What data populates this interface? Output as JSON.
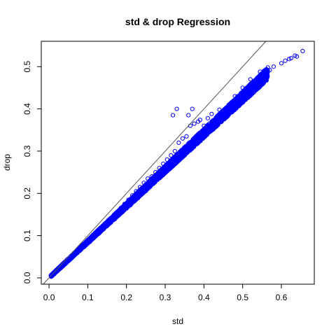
{
  "chart_data": {
    "type": "scatter",
    "title": "std & drop Regression",
    "xlabel": "std",
    "ylabel": "drop",
    "xlim": [
      -0.02,
      0.685
    ],
    "ylim": [
      -0.015,
      0.56
    ],
    "xticks": [
      0.0,
      0.1,
      0.2,
      0.3,
      0.4,
      0.5,
      0.6
    ],
    "xtick_labels": [
      "0.0",
      "0.1",
      "0.2",
      "0.3",
      "0.4",
      "0.5",
      "0.6"
    ],
    "yticks": [
      0.0,
      0.1,
      0.2,
      0.3,
      0.4,
      0.5
    ],
    "ytick_labels": [
      "0.0",
      "0.1",
      "0.2",
      "0.3",
      "0.4",
      "0.5"
    ],
    "reference_line": {
      "slope": 1,
      "intercept": 0
    },
    "marker": "open-circle",
    "grid": false,
    "legend": "none",
    "color": "#0000ff",
    "points": [
      [
        0.005,
        0.005
      ],
      [
        0.01,
        0.009
      ],
      [
        0.02,
        0.018
      ],
      [
        0.03,
        0.026
      ],
      [
        0.04,
        0.034
      ],
      [
        0.05,
        0.043
      ],
      [
        0.06,
        0.051
      ],
      [
        0.07,
        0.058
      ],
      [
        0.08,
        0.066
      ],
      [
        0.09,
        0.074
      ],
      [
        0.1,
        0.082
      ],
      [
        0.11,
        0.09
      ],
      [
        0.12,
        0.098
      ],
      [
        0.13,
        0.106
      ],
      [
        0.14,
        0.115
      ],
      [
        0.15,
        0.123
      ],
      [
        0.16,
        0.131
      ],
      [
        0.17,
        0.139
      ],
      [
        0.18,
        0.148
      ],
      [
        0.19,
        0.156
      ],
      [
        0.2,
        0.164
      ],
      [
        0.21,
        0.172
      ],
      [
        0.22,
        0.181
      ],
      [
        0.23,
        0.189
      ],
      [
        0.24,
        0.198
      ],
      [
        0.25,
        0.206
      ],
      [
        0.26,
        0.215
      ],
      [
        0.27,
        0.223
      ],
      [
        0.28,
        0.232
      ],
      [
        0.29,
        0.24
      ],
      [
        0.3,
        0.249
      ],
      [
        0.31,
        0.258
      ],
      [
        0.32,
        0.266
      ],
      [
        0.33,
        0.275
      ],
      [
        0.34,
        0.284
      ],
      [
        0.35,
        0.293
      ],
      [
        0.36,
        0.302
      ],
      [
        0.37,
        0.311
      ],
      [
        0.38,
        0.32
      ],
      [
        0.39,
        0.329
      ],
      [
        0.4,
        0.338
      ],
      [
        0.41,
        0.347
      ],
      [
        0.42,
        0.356
      ],
      [
        0.43,
        0.365
      ],
      [
        0.44,
        0.374
      ],
      [
        0.45,
        0.383
      ],
      [
        0.46,
        0.393
      ],
      [
        0.47,
        0.402
      ],
      [
        0.48,
        0.411
      ],
      [
        0.49,
        0.42
      ],
      [
        0.5,
        0.43
      ],
      [
        0.51,
        0.439
      ],
      [
        0.52,
        0.448
      ],
      [
        0.53,
        0.457
      ],
      [
        0.54,
        0.466
      ],
      [
        0.55,
        0.475
      ],
      [
        0.56,
        0.484
      ],
      [
        0.57,
        0.492
      ],
      [
        0.58,
        0.5
      ],
      [
        0.6,
        0.508
      ],
      [
        0.61,
        0.514
      ],
      [
        0.62,
        0.518
      ],
      [
        0.625,
        0.52
      ],
      [
        0.635,
        0.526
      ],
      [
        0.64,
        0.524
      ],
      [
        0.655,
        0.537
      ],
      [
        0.545,
        0.488
      ],
      [
        0.555,
        0.49
      ],
      [
        0.52,
        0.47
      ],
      [
        0.5,
        0.45
      ],
      [
        0.48,
        0.43
      ],
      [
        0.4,
        0.36
      ],
      [
        0.38,
        0.33
      ],
      [
        0.37,
        0.4
      ],
      [
        0.36,
        0.385
      ],
      [
        0.33,
        0.4
      ],
      [
        0.32,
        0.385
      ],
      [
        0.41,
        0.378
      ],
      [
        0.42,
        0.388
      ],
      [
        0.44,
        0.398
      ],
      [
        0.39,
        0.374
      ],
      [
        0.385,
        0.37
      ],
      [
        0.375,
        0.365
      ],
      [
        0.365,
        0.36
      ],
      [
        0.355,
        0.335
      ],
      [
        0.345,
        0.33
      ],
      [
        0.335,
        0.32
      ],
      [
        0.325,
        0.3
      ],
      [
        0.315,
        0.29
      ],
      [
        0.305,
        0.28
      ],
      [
        0.295,
        0.27
      ],
      [
        0.285,
        0.26
      ],
      [
        0.275,
        0.25
      ],
      [
        0.265,
        0.24
      ],
      [
        0.255,
        0.235
      ],
      [
        0.245,
        0.225
      ],
      [
        0.235,
        0.215
      ],
      [
        0.225,
        0.205
      ],
      [
        0.215,
        0.195
      ],
      [
        0.205,
        0.185
      ],
      [
        0.195,
        0.175
      ],
      [
        0.185,
        0.165
      ],
      [
        0.175,
        0.155
      ],
      [
        0.165,
        0.145
      ],
      [
        0.155,
        0.135
      ],
      [
        0.145,
        0.125
      ],
      [
        0.135,
        0.115
      ],
      [
        0.125,
        0.105
      ],
      [
        0.115,
        0.095
      ],
      [
        0.105,
        0.085
      ],
      [
        0.095,
        0.078
      ],
      [
        0.085,
        0.07
      ],
      [
        0.075,
        0.062
      ],
      [
        0.065,
        0.055
      ],
      [
        0.055,
        0.047
      ],
      [
        0.045,
        0.038
      ],
      [
        0.035,
        0.03
      ],
      [
        0.025,
        0.022
      ],
      [
        0.015,
        0.013
      ]
    ]
  }
}
